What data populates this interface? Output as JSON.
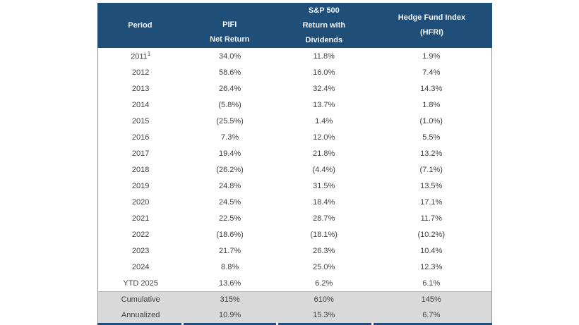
{
  "chart_data": {
    "type": "table",
    "columns": [
      {
        "id": "period",
        "lines": [
          "Period"
        ]
      },
      {
        "id": "pifi",
        "lines": [
          "PIFI",
          "Net Return"
        ]
      },
      {
        "id": "sp500",
        "lines": [
          "S&P 500",
          "Return with",
          "Dividends"
        ]
      },
      {
        "id": "hfri",
        "lines": [
          "Hedge Fund Index",
          "(HFRI)"
        ]
      }
    ],
    "rows": [
      {
        "period": "2011",
        "footnote_marker": "1",
        "values": [
          "34.0%",
          "11.8%",
          "1.9%"
        ]
      },
      {
        "period": "2012",
        "values": [
          "58.6%",
          "16.0%",
          "7.4%"
        ]
      },
      {
        "period": "2013",
        "values": [
          "26.4%",
          "32.4%",
          "14.3%"
        ]
      },
      {
        "period": "2014",
        "values": [
          "(5.8%)",
          "13.7%",
          "1.8%"
        ]
      },
      {
        "period": "2015",
        "values": [
          "(25.5%)",
          "1.4%",
          "(1.0%)"
        ]
      },
      {
        "period": "2016",
        "values": [
          "7.3%",
          "12.0%",
          "5.5%"
        ]
      },
      {
        "period": "2017",
        "values": [
          "19.4%",
          "21.8%",
          "13.2%"
        ]
      },
      {
        "period": "2018",
        "values": [
          "(26.2%)",
          "(4.4%)",
          "(7.1%)"
        ]
      },
      {
        "period": "2019",
        "values": [
          "24.8%",
          "31.5%",
          "13.5%"
        ]
      },
      {
        "period": "2020",
        "values": [
          "24.5%",
          "18.4%",
          "17.1%"
        ]
      },
      {
        "period": "2021",
        "values": [
          "22.5%",
          "28.7%",
          "11.7%"
        ]
      },
      {
        "period": "2022",
        "values": [
          "(18.6%)",
          "(18.1%)",
          "(10.2%)"
        ]
      },
      {
        "period": "2023",
        "values": [
          "21.7%",
          "26.3%",
          "10.4%"
        ]
      },
      {
        "period": "2024",
        "values": [
          "8.8%",
          "25.0%",
          "12.3%"
        ]
      },
      {
        "period": "YTD 2025",
        "values": [
          "13.6%",
          "6.2%",
          "6.1%"
        ]
      }
    ],
    "summary_rows": [
      {
        "period": "Cumulative",
        "values": [
          "315%",
          "610%",
          "145%"
        ]
      },
      {
        "period": "Annualized",
        "values": [
          "10.9%",
          "15.3%",
          "6.7%"
        ]
      }
    ]
  },
  "colors": {
    "header_bg": "#1F4E79",
    "header_text": "#F5F7FA",
    "summary_bg": "#D9D9D9",
    "body_text": "#404040"
  }
}
